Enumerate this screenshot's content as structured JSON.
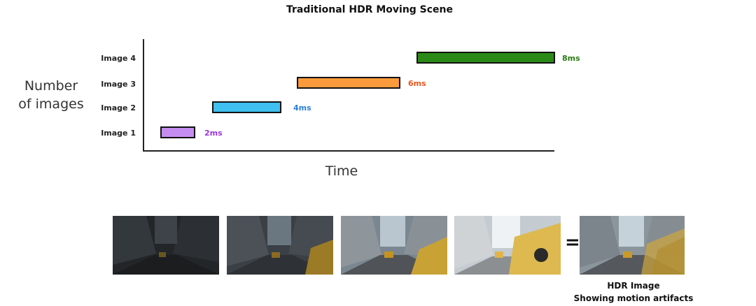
{
  "title": "Traditional HDR  Moving Scene",
  "axes": {
    "y_label_line1": "Number",
    "y_label_line2": "of images",
    "x_label": "Time"
  },
  "rows": [
    {
      "label": "Image 1",
      "duration": "2ms",
      "color": "#c58cf0",
      "text_color": "#9c36e0"
    },
    {
      "label": "Image 2",
      "duration": "4ms",
      "color": "#3fc0f0",
      "text_color": "#2a7fd6"
    },
    {
      "label": "Image 3",
      "duration": "6ms",
      "color": "#fb9a3c",
      "text_color": "#e8561c"
    },
    {
      "label": "Image 4",
      "duration": "8ms",
      "color": "#2b8a17",
      "text_color": "#2b7a15"
    }
  ],
  "frames": [
    {
      "exposure": "darkest"
    },
    {
      "exposure": "dark"
    },
    {
      "exposure": "medium"
    },
    {
      "exposure": "bright"
    }
  ],
  "equals_sign": "=",
  "result": {
    "line1": "HDR Image",
    "line2": "Showing motion artifacts"
  }
}
